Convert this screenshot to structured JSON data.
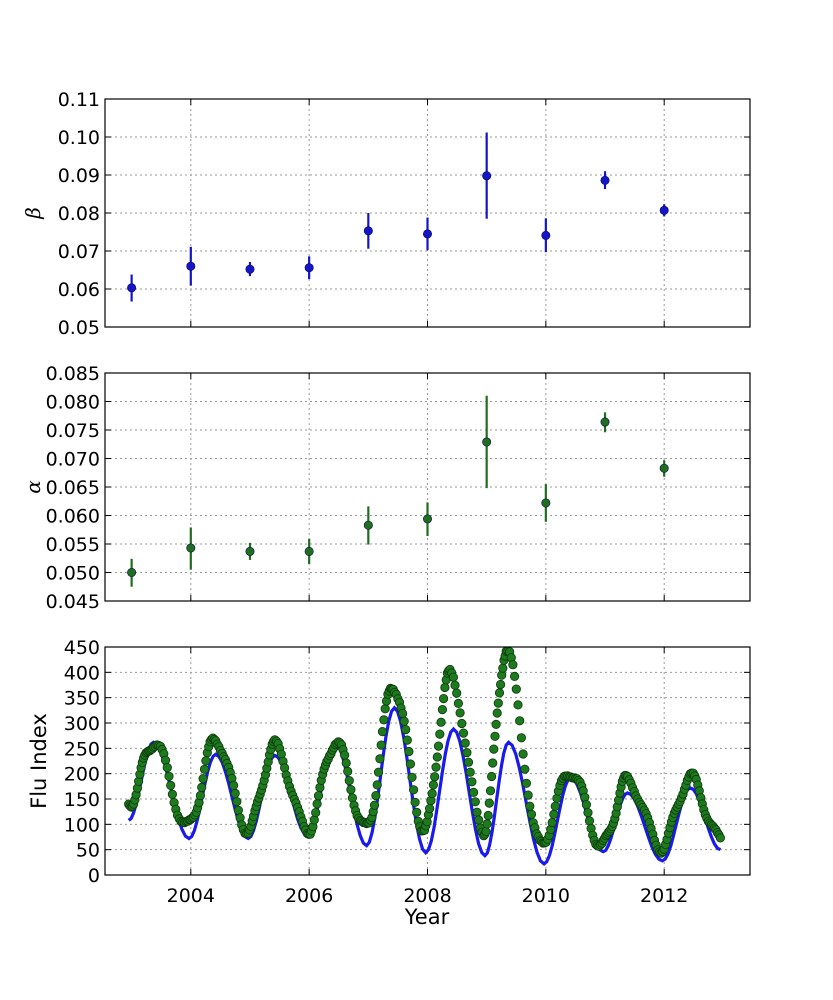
{
  "chart_data": [
    {
      "type": "scatter",
      "panel": "beta",
      "ylabel": "β",
      "xlabel": "",
      "xlim": [
        2002.55,
        2013.45
      ],
      "ylim": [
        0.05,
        0.11
      ],
      "yticks": [
        "0.05",
        "0.06",
        "0.07",
        "0.08",
        "0.09",
        "0.10",
        "0.11"
      ],
      "grid": true,
      "color": "#1414c8",
      "series": [
        {
          "x": [
            2003,
            2004,
            2005,
            2006,
            2007,
            2008,
            2009,
            2010,
            2011,
            2012
          ],
          "values": [
            0.0603,
            0.066,
            0.0652,
            0.0656,
            0.0753,
            0.0745,
            0.0898,
            0.0741,
            0.0886,
            0.0807
          ],
          "err_low": [
            0.0567,
            0.0609,
            0.0634,
            0.0626,
            0.0706,
            0.0702,
            0.0785,
            0.0697,
            0.0863,
            0.0791
          ],
          "err_high": [
            0.0638,
            0.0711,
            0.0671,
            0.0686,
            0.08,
            0.0788,
            0.1012,
            0.0786,
            0.091,
            0.0823
          ]
        }
      ]
    },
    {
      "type": "scatter",
      "panel": "alpha",
      "ylabel": "α",
      "xlabel": "",
      "xlim": [
        2002.55,
        2013.45
      ],
      "ylim": [
        0.045,
        0.085
      ],
      "yticks": [
        "0.045",
        "0.050",
        "0.055",
        "0.060",
        "0.065",
        "0.070",
        "0.075",
        "0.080",
        "0.085"
      ],
      "grid": true,
      "color": "#1e6e1e",
      "series": [
        {
          "x": [
            2003,
            2004,
            2005,
            2006,
            2007,
            2008,
            2009,
            2010,
            2011,
            2012
          ],
          "values": [
            0.05,
            0.0543,
            0.0537,
            0.0537,
            0.0583,
            0.0594,
            0.0729,
            0.0622,
            0.0764,
            0.0683
          ],
          "err_low": [
            0.0475,
            0.0505,
            0.0522,
            0.0515,
            0.0549,
            0.0564,
            0.0648,
            0.0589,
            0.0746,
            0.0668
          ],
          "err_high": [
            0.0524,
            0.0579,
            0.0552,
            0.0559,
            0.0616,
            0.0623,
            0.081,
            0.0655,
            0.0781,
            0.0697
          ]
        }
      ]
    },
    {
      "type": "line",
      "panel": "flu",
      "ylabel": "Flu Index",
      "xlabel": "Year",
      "xlim": [
        2002.55,
        2013.45
      ],
      "ylim": [
        0,
        450
      ],
      "yticks": [
        "0",
        "50",
        "100",
        "150",
        "200",
        "250",
        "300",
        "350",
        "400",
        "450"
      ],
      "xticks": [
        "2004",
        "2006",
        "2008",
        "2010",
        "2012"
      ],
      "grid": true,
      "series": [
        {
          "kind": "line",
          "color": "#1a1aee",
          "peaks": [
            [
              2003.37,
              262
            ],
            [
              2004.42,
              238
            ],
            [
              2005.42,
              236
            ],
            [
              2006.44,
              260
            ],
            [
              2007.44,
              330
            ],
            [
              2008.44,
              288
            ],
            [
              2009.37,
              262
            ],
            [
              2010.42,
              192
            ],
            [
              2011.38,
              162
            ],
            [
              2012.44,
              172
            ]
          ],
          "troughs": [
            [
              2002.95,
              108
            ],
            [
              2003.97,
              72
            ],
            [
              2004.97,
              72
            ],
            [
              2005.97,
              78
            ],
            [
              2006.97,
              58
            ],
            [
              2007.97,
              44
            ],
            [
              2008.97,
              38
            ],
            [
              2009.97,
              22
            ],
            [
              2010.97,
              46
            ],
            [
              2011.97,
              28
            ],
            [
              2012.95,
              50
            ]
          ]
        },
        {
          "kind": "scatter",
          "color": "#1e7a1e",
          "peaks": [
            [
              2003.37,
              262
            ],
            [
              2004.42,
              268
            ],
            [
              2005.42,
              255
            ],
            [
              2006.44,
              262
            ],
            [
              2007.42,
              375
            ],
            [
              2008.38,
              395
            ],
            [
              2009.33,
              440
            ],
            [
              2010.42,
              205
            ],
            [
              2011.38,
              188
            ],
            [
              2012.44,
              192
            ]
          ],
          "troughs": [
            [
              2002.95,
              140
            ],
            [
              2003.95,
              95
            ],
            [
              2004.97,
              90
            ],
            [
              2005.97,
              88
            ],
            [
              2006.97,
              90
            ],
            [
              2007.95,
              90
            ],
            [
              2008.95,
              88
            ],
            [
              2009.9,
              60
            ],
            [
              2010.95,
              58
            ],
            [
              2011.95,
              55
            ],
            [
              2012.95,
              70
            ]
          ]
        }
      ]
    }
  ]
}
